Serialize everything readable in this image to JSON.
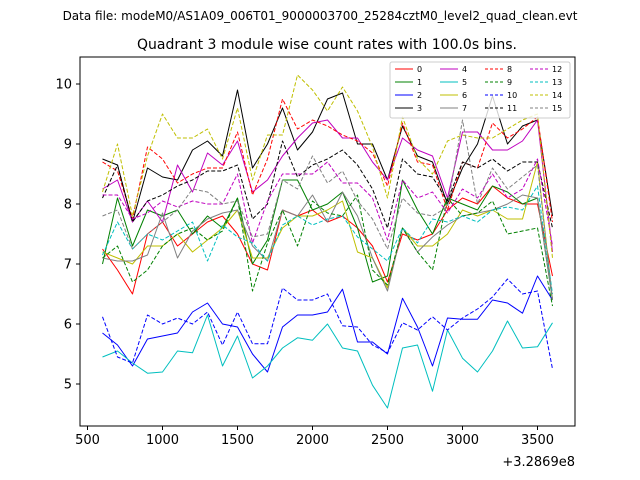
{
  "header": {
    "data_file": "Data file: modeM0/AS1A09_006T01_9000003700_25284cztM0_level2_quad_clean.evt"
  },
  "chart_data": {
    "type": "line",
    "title": "Quadrant 3 module wise count rates with 100.0s bins.",
    "xlabel": "",
    "ylabel": "",
    "x_offset_label": "+3.2869e8",
    "xlim": [
      450,
      3750
    ],
    "ylim": [
      4.3,
      10.45
    ],
    "xticks": [
      500,
      1000,
      1500,
      2000,
      2500,
      3000,
      3500
    ],
    "yticks": [
      5,
      6,
      7,
      8,
      9,
      10
    ],
    "grid": false,
    "legend_position": "top-right",
    "x": [
      600,
      700,
      800,
      900,
      1000,
      1100,
      1200,
      1300,
      1400,
      1500,
      1600,
      1700,
      1800,
      1900,
      2000,
      2100,
      2200,
      2300,
      2400,
      2500,
      2600,
      2700,
      2800,
      2900,
      3000,
      3100,
      3200,
      3300,
      3400,
      3500,
      3600
    ],
    "series": [
      {
        "name": "0",
        "color": "#ff0000",
        "dash": "solid",
        "values": [
          7.25,
          6.9,
          6.5,
          7.5,
          7.7,
          7.3,
          7.5,
          7.7,
          7.8,
          7.5,
          7.0,
          6.9,
          7.9,
          7.8,
          7.9,
          7.7,
          7.8,
          7.6,
          7.3,
          6.7,
          7.5,
          7.4,
          7.5,
          7.9,
          8.1,
          8.0,
          8.3,
          8.1,
          8.0,
          8.0,
          6.8
        ]
      },
      {
        "name": "1",
        "color": "#008000",
        "dash": "solid",
        "values": [
          7.0,
          8.1,
          7.3,
          7.9,
          7.8,
          7.9,
          7.5,
          7.8,
          7.6,
          8.1,
          7.0,
          7.4,
          8.4,
          8.4,
          7.9,
          8.0,
          8.2,
          7.6,
          6.7,
          6.8,
          8.4,
          7.9,
          7.5,
          8.1,
          8.0,
          7.9,
          8.3,
          8.2,
          8.0,
          8.1,
          6.4
        ]
      },
      {
        "name": "2",
        "color": "#0000ff",
        "dash": "solid",
        "values": [
          5.85,
          5.65,
          5.3,
          5.75,
          5.8,
          5.85,
          6.2,
          6.35,
          6.0,
          5.95,
          5.5,
          5.2,
          5.95,
          6.15,
          6.15,
          6.2,
          6.58,
          5.7,
          5.7,
          5.5,
          6.43,
          5.95,
          5.3,
          6.1,
          6.08,
          6.08,
          6.4,
          6.35,
          6.18,
          6.8,
          6.4
        ]
      },
      {
        "name": "3",
        "color": "#000000",
        "dash": "solid",
        "values": [
          8.75,
          8.65,
          7.7,
          8.6,
          8.45,
          8.4,
          8.9,
          9.05,
          8.8,
          9.9,
          8.6,
          9.0,
          9.6,
          8.9,
          9.2,
          9.75,
          9.85,
          9.0,
          9.0,
          8.4,
          9.3,
          8.8,
          8.7,
          8.0,
          8.6,
          9.0,
          9.8,
          9.0,
          9.3,
          9.4,
          7.8
        ]
      },
      {
        "name": "4",
        "color": "#bf00bf",
        "dash": "solid",
        "values": [
          8.25,
          8.4,
          7.7,
          8.05,
          7.7,
          8.65,
          8.2,
          8.85,
          8.65,
          9.05,
          8.2,
          8.4,
          8.8,
          9.1,
          9.35,
          9.4,
          9.1,
          9.1,
          8.7,
          8.4,
          9.1,
          8.9,
          8.8,
          8.1,
          9.2,
          9.2,
          8.9,
          8.9,
          9.05,
          9.4,
          7.2
        ]
      },
      {
        "name": "5",
        "color": "#00bfbf",
        "dash": "solid",
        "values": [
          5.45,
          5.55,
          5.35,
          5.18,
          5.2,
          5.55,
          5.52,
          6.15,
          5.3,
          5.8,
          5.1,
          5.3,
          5.6,
          5.77,
          5.73,
          6.0,
          5.6,
          5.55,
          4.98,
          4.6,
          5.6,
          5.65,
          4.88,
          5.9,
          5.43,
          5.2,
          5.55,
          6.05,
          5.6,
          5.62,
          6.02
        ]
      },
      {
        "name": "6",
        "color": "#bfbf00",
        "dash": "solid",
        "values": [
          7.2,
          7.1,
          7.0,
          7.3,
          7.3,
          7.5,
          7.2,
          7.4,
          7.6,
          7.9,
          7.1,
          7.1,
          7.6,
          7.8,
          7.8,
          7.9,
          8.05,
          7.2,
          7.1,
          6.6,
          7.6,
          7.3,
          7.3,
          7.5,
          7.9,
          7.8,
          7.9,
          7.75,
          7.75,
          8.7,
          6.4
        ]
      },
      {
        "name": "7",
        "color": "#808080",
        "dash": "solid",
        "values": [
          7.1,
          7.05,
          7.05,
          7.15,
          7.85,
          7.1,
          7.55,
          7.75,
          7.85,
          7.9,
          7.3,
          7.05,
          7.9,
          7.8,
          8.15,
          7.7,
          8.2,
          7.8,
          7.1,
          6.55,
          7.6,
          7.2,
          7.45,
          7.65,
          7.8,
          7.85,
          7.9,
          8.0,
          8.15,
          8.1,
          6.4
        ]
      },
      {
        "name": "8",
        "color": "#ff0000",
        "dash": "dashed",
        "values": [
          8.7,
          8.55,
          7.75,
          8.95,
          8.75,
          8.35,
          8.5,
          8.6,
          8.6,
          9.2,
          8.15,
          8.75,
          9.75,
          9.25,
          9.4,
          9.3,
          9.15,
          9.05,
          8.85,
          8.3,
          9.35,
          8.7,
          8.65,
          7.9,
          8.7,
          8.6,
          9.35,
          9.1,
          9.25,
          9.45,
          7.7
        ]
      },
      {
        "name": "9",
        "color": "#008000",
        "dash": "dashed",
        "values": [
          7.1,
          7.3,
          6.7,
          6.9,
          7.3,
          7.5,
          7.6,
          7.4,
          7.55,
          8.1,
          6.55,
          7.35,
          7.9,
          7.3,
          8.05,
          7.85,
          7.8,
          8.15,
          6.9,
          6.65,
          7.6,
          7.2,
          6.9,
          8.1,
          7.8,
          7.85,
          8.05,
          7.5,
          7.55,
          7.6,
          6.3
        ]
      },
      {
        "name": "10",
        "color": "#0000ff",
        "dash": "dashed",
        "values": [
          6.12,
          5.45,
          5.35,
          6.15,
          6.0,
          6.1,
          6.0,
          6.2,
          5.65,
          6.2,
          5.67,
          5.67,
          6.6,
          6.4,
          6.4,
          6.5,
          5.97,
          5.95,
          5.65,
          5.52,
          6.02,
          5.9,
          6.12,
          5.9,
          6.1,
          6.25,
          6.45,
          6.75,
          6.5,
          6.55,
          5.25
        ]
      },
      {
        "name": "11",
        "color": "#000000",
        "dash": "dashed",
        "values": [
          8.1,
          8.65,
          7.7,
          8.05,
          8.15,
          8.3,
          8.4,
          8.55,
          8.55,
          8.65,
          7.75,
          8.0,
          9.05,
          8.45,
          8.65,
          8.75,
          8.9,
          8.65,
          8.25,
          7.6,
          8.75,
          8.5,
          8.45,
          8.05,
          8.7,
          8.6,
          8.75,
          8.55,
          8.7,
          8.7,
          7.6
        ]
      },
      {
        "name": "12",
        "color": "#bf00bf",
        "dash": "dashed",
        "values": [
          8.15,
          8.15,
          7.75,
          7.85,
          8.05,
          7.95,
          8.05,
          8.0,
          8.0,
          8.5,
          7.35,
          8.05,
          8.5,
          8.5,
          8.5,
          8.7,
          8.35,
          8.35,
          8.1,
          7.4,
          8.4,
          8.1,
          8.2,
          7.85,
          8.25,
          8.1,
          8.5,
          8.1,
          8.25,
          8.75,
          7.3
        ]
      },
      {
        "name": "13",
        "color": "#00bfbf",
        "dash": "dashed",
        "values": [
          7.15,
          7.7,
          7.25,
          7.5,
          7.4,
          7.55,
          7.7,
          7.05,
          7.65,
          7.45,
          7.35,
          7.05,
          7.65,
          7.8,
          7.65,
          7.75,
          7.8,
          7.45,
          7.25,
          7.05,
          7.6,
          7.35,
          7.75,
          7.7,
          7.8,
          7.7,
          7.9,
          7.95,
          7.9,
          8.3,
          6.5
        ]
      },
      {
        "name": "14",
        "color": "#bfbf00",
        "dash": "dashed",
        "values": [
          8.2,
          9.0,
          7.8,
          8.8,
          9.5,
          9.1,
          9.1,
          9.25,
          8.75,
          9.6,
          8.4,
          9.15,
          9.15,
          10.15,
          9.9,
          9.55,
          9.95,
          9.55,
          8.95,
          8.1,
          9.45,
          8.75,
          8.5,
          9.05,
          9.15,
          9.1,
          9.1,
          9.25,
          9.4,
          9.5,
          7.1
        ]
      },
      {
        "name": "15",
        "color": "#808080",
        "dash": "dashed",
        "values": [
          7.8,
          7.9,
          7.25,
          7.5,
          7.7,
          7.9,
          8.25,
          8.2,
          8.0,
          8.05,
          7.45,
          7.5,
          8.4,
          8.25,
          8.8,
          8.35,
          8.55,
          8.05,
          7.75,
          7.25,
          8.1,
          7.85,
          7.8,
          7.95,
          9.4,
          8.0,
          8.6,
          8.25,
          8.45,
          8.65,
          6.4
        ]
      }
    ]
  }
}
